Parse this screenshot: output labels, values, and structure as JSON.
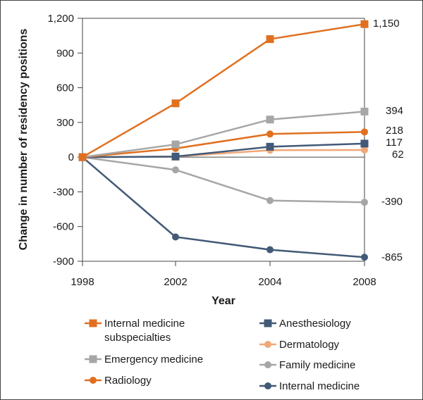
{
  "chart_data": {
    "type": "line",
    "xlabel": "Year",
    "ylabel": "Change in number of residency positions",
    "x": [
      1998,
      2002,
      2004,
      2008
    ],
    "x_tick_labels": [
      "1998",
      "2002",
      "2004",
      "2008"
    ],
    "ylim": [
      -900,
      1200
    ],
    "y_ticks": [
      -900,
      -600,
      -300,
      0,
      300,
      600,
      900,
      1200
    ],
    "y_tick_labels": [
      "-900",
      "-600",
      "-300",
      "0",
      "300",
      "600",
      "900",
      "1,200"
    ],
    "grid": false,
    "legend_placement": "bottom",
    "series": [
      {
        "name": "Internal medicine subspecialties",
        "name_lines": [
          "Internal medicine",
          "subspecialties"
        ],
        "values": [
          0,
          465,
          1020,
          1150
        ],
        "end_label": "1,150",
        "color": "#e07020",
        "marker": "square"
      },
      {
        "name": "Emergency medicine",
        "name_lines": [
          "Emergency medicine"
        ],
        "values": [
          0,
          110,
          325,
          394
        ],
        "end_label": "394",
        "color": "#a6a6a6",
        "marker": "square"
      },
      {
        "name": "Radiology",
        "name_lines": [
          "Radiology"
        ],
        "values": [
          0,
          75,
          200,
          218
        ],
        "end_label": "218",
        "color": "#e07020",
        "marker": "circle"
      },
      {
        "name": "Anesthesiology",
        "name_lines": [
          "Anesthesiology"
        ],
        "values": [
          0,
          5,
          90,
          117
        ],
        "end_label": "117",
        "color": "#425a78",
        "marker": "square"
      },
      {
        "name": "Dermatology",
        "name_lines": [
          "Dermatology"
        ],
        "values": [
          0,
          5,
          60,
          62
        ],
        "end_label": "62",
        "color": "#f0a878",
        "marker": "circle"
      },
      {
        "name": "Family medicine",
        "name_lines": [
          "Family medicine"
        ],
        "values": [
          0,
          -110,
          -375,
          -390
        ],
        "end_label": "-390",
        "color": "#a6a6a6",
        "marker": "circle"
      },
      {
        "name": "Internal medicine",
        "name_lines": [
          "Internal medicine"
        ],
        "values": [
          0,
          -690,
          -800,
          -865
        ],
        "end_label": "-865",
        "color": "#425a78",
        "marker": "circle"
      }
    ]
  }
}
